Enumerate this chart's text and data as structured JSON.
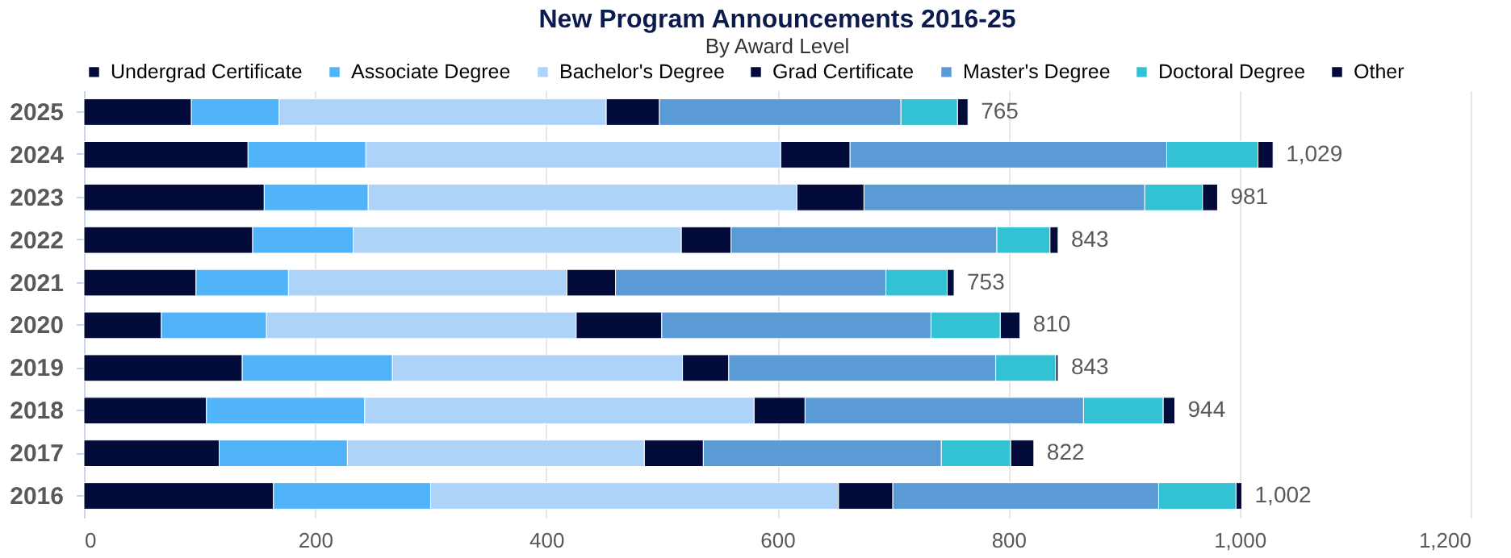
{
  "chart_data": {
    "type": "bar",
    "orientation": "horizontal",
    "stacked": true,
    "title": "New Program Announcements 2016-25",
    "subtitle": "By Award Level",
    "categories": [
      "2025",
      "2024",
      "2023",
      "2022",
      "2021",
      "2020",
      "2019",
      "2018",
      "2017",
      "2016"
    ],
    "series": [
      {
        "name": "Undergrad Certificate",
        "color": "#020b3a",
        "values": [
          93,
          142,
          156,
          146,
          97,
          67,
          137,
          106,
          117,
          164
        ]
      },
      {
        "name": "Associate Degree",
        "color": "#52b4f8",
        "values": [
          76,
          102,
          90,
          87,
          80,
          91,
          130,
          137,
          111,
          136
        ]
      },
      {
        "name": "Bachelor's Degree",
        "color": "#add3f8",
        "values": [
          283,
          359,
          371,
          284,
          241,
          268,
          251,
          337,
          257,
          353
        ]
      },
      {
        "name": "Grad Certificate",
        "color": "#020b3a",
        "values": [
          46,
          60,
          58,
          43,
          42,
          74,
          40,
          44,
          51,
          47
        ]
      },
      {
        "name": "Master's Degree",
        "color": "#5b9bd5",
        "values": [
          209,
          274,
          243,
          230,
          234,
          233,
          231,
          241,
          206,
          230
        ]
      },
      {
        "name": "Doctoral Degree",
        "color": "#33c1d4",
        "values": [
          49,
          79,
          50,
          46,
          53,
          60,
          52,
          69,
          60,
          67
        ]
      },
      {
        "name": "Other",
        "color": "#020b3a",
        "values": [
          9,
          13,
          13,
          7,
          6,
          17,
          2,
          10,
          20,
          5
        ]
      }
    ],
    "totals": [
      "765",
      "1,029",
      "981",
      "843",
      "753",
      "810",
      "843",
      "944",
      "822",
      "1,002"
    ],
    "xlim": [
      0,
      1200
    ],
    "xticks": [
      0,
      200,
      400,
      600,
      800,
      {
        "value": 1000,
        "label": "1,000"
      },
      {
        "value": 1200,
        "label": "1,200"
      }
    ],
    "grid": "x",
    "legend": "top"
  }
}
